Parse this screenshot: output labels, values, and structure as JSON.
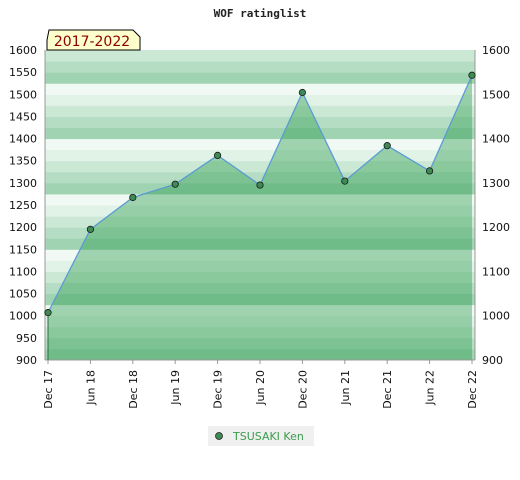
{
  "chart_data": {
    "type": "area",
    "title": "WOF ratinglist",
    "period_badge": "2017-2022",
    "x": [
      "Dec 17",
      "Jun 18",
      "Dec 18",
      "Jun 19",
      "Dec 19",
      "Jun 20",
      "Dec 20",
      "Jun 21",
      "Dec 21",
      "Jun 22",
      "Dec 22"
    ],
    "series": [
      {
        "name": "TSUSAKI Ken",
        "values": [
          1007,
          1195,
          1267,
          1297,
          1362,
          1295,
          1504,
          1304,
          1384,
          1327,
          1543
        ]
      }
    ],
    "ylim": [
      900,
      1600
    ],
    "yticks": [
      900,
      950,
      1000,
      1050,
      1100,
      1150,
      1200,
      1250,
      1300,
      1350,
      1400,
      1450,
      1500,
      1550,
      1600
    ],
    "yticks_right": [
      900,
      1000,
      1100,
      1200,
      1300,
      1400,
      1500,
      1600
    ],
    "xlabel": "",
    "ylabel": "",
    "legend_position": "bottom-center",
    "grid": false,
    "colors": {
      "line": "#5b9bd5",
      "fill": "#2e9e4f",
      "marker": "#3d8a55",
      "legend_text": "#3a9c4e",
      "badge_bg": "#ffffcc",
      "badge_text": "#8b0000",
      "band_dark": "#b2dcc0",
      "band_light": "#f0f8f2"
    }
  }
}
